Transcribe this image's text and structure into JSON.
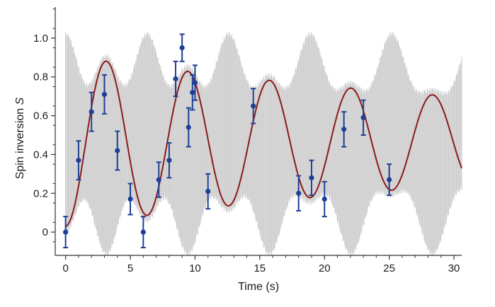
{
  "chart_data": {
    "type": "scatter",
    "xlabel": "Time (s)",
    "ylabel_main": "Spin inversion ",
    "ylabel_symbol": "S",
    "xlim": [
      -0.8,
      30.6
    ],
    "ylim": [
      -0.12,
      1.16
    ],
    "xticks": [
      0,
      5,
      10,
      15,
      20,
      25,
      30
    ],
    "xtick_labels": [
      "0",
      "5",
      "10",
      "15",
      "20",
      "25",
      "30"
    ],
    "yticks": [
      0,
      0.2,
      0.4,
      0.6,
      0.8,
      1.0
    ],
    "ytick_labels": [
      "0",
      "0.2",
      "0.4",
      "0.6",
      "0.8",
      "1.0"
    ],
    "colors": {
      "band": "#d6d6d6",
      "curve": "#8b1a1a",
      "points": "#1d3f95",
      "axis": "#333333"
    },
    "series": [
      {
        "kind": "points_with_error_bars",
        "x": [
          0,
          1,
          2,
          3,
          4,
          5,
          6,
          7.2,
          8,
          8.5,
          9,
          9.5,
          9.8,
          10,
          11,
          14.5,
          18,
          19,
          20,
          21.5,
          23,
          25
        ],
        "y": [
          0.0,
          0.37,
          0.62,
          0.71,
          0.42,
          0.17,
          0.0,
          0.27,
          0.37,
          0.79,
          0.95,
          0.54,
          0.72,
          0.77,
          0.21,
          0.65,
          0.2,
          0.28,
          0.17,
          0.53,
          0.59,
          0.27
        ],
        "err": [
          0.08,
          0.1,
          0.1,
          0.1,
          0.1,
          0.08,
          0.08,
          0.09,
          0.09,
          0.09,
          0.07,
          0.1,
          0.09,
          0.09,
          0.09,
          0.09,
          0.09,
          0.09,
          0.09,
          0.09,
          0.09,
          0.08
        ]
      },
      {
        "kind": "fit_curve",
        "model": "damped_cosine",
        "amplitude": 0.44,
        "offset": 0.47,
        "decay_time_s": 46,
        "period_s": 6.3,
        "x_max": 30.6
      },
      {
        "kind": "uncertainty_band",
        "peak_upper": 1.02,
        "trough_lower": -0.11,
        "x_max": 30.6
      }
    ]
  }
}
